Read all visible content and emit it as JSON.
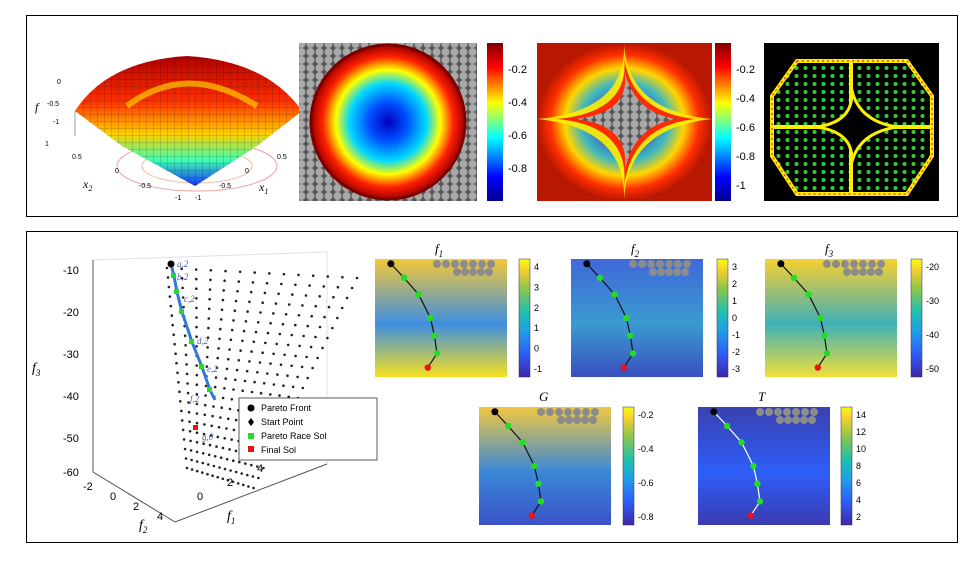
{
  "top": {
    "surface": {
      "zlabel": "f",
      "xlabel": "x",
      "xlabel_sub": "1",
      "ylabel": "x",
      "ylabel_sub": "2",
      "zticks": [
        "0",
        "-0.5",
        "-1"
      ],
      "xticks": [
        "-1",
        "-0.5",
        "0",
        "0.5"
      ],
      "yticks": [
        "1",
        "0.5",
        "0",
        "-0.5",
        "-1"
      ]
    },
    "colorbar1": {
      "ticks": [
        "-0.2",
        "-0.4",
        "-0.6",
        "-0.8"
      ]
    },
    "colorbar2": {
      "ticks": [
        "-0.2",
        "-0.4",
        "-0.6",
        "-0.8",
        "-1"
      ]
    }
  },
  "bottom": {
    "plot3d": {
      "zticks": [
        "-10",
        "-20",
        "-30",
        "-40",
        "-50",
        "-60"
      ],
      "xticks": [
        "-2",
        "0",
        "2",
        "4"
      ],
      "yticks": [
        "0",
        "2",
        "4"
      ],
      "xlabel": "f",
      "xlabel_sub": "2",
      "ylabel": "f",
      "ylabel_sub": "1",
      "zlabel": "f",
      "zlabel_sub": "3",
      "point_labels": [
        "a,2",
        "b,2",
        "c,2",
        "d,2",
        "e,2",
        "f,2",
        "g,0"
      ],
      "legend": [
        "Pareto Front",
        "Start Point",
        "Pareto Race Sol",
        "Final Sol"
      ]
    },
    "maps": [
      {
        "title": "f",
        "sub": "1",
        "ticks": [
          "4",
          "3",
          "2",
          "1",
          "0",
          "-1"
        ]
      },
      {
        "title": "f",
        "sub": "2",
        "ticks": [
          "3",
          "2",
          "1",
          "0",
          "-1",
          "-2",
          "-3"
        ]
      },
      {
        "title": "f",
        "sub": "3",
        "ticks": [
          "-20",
          "-30",
          "-40",
          "-50"
        ]
      },
      {
        "title": "G",
        "sub": "",
        "ticks": [
          "-0.2",
          "-0.4",
          "-0.6",
          "-0.8"
        ]
      },
      {
        "title": "T",
        "sub": "",
        "ticks": [
          "14",
          "12",
          "10",
          "8",
          "6",
          "4",
          "2"
        ]
      }
    ]
  },
  "colors": {
    "jet": [
      "#00008f",
      "#0000ff",
      "#00ffff",
      "#ffff00",
      "#ff0000",
      "#800000"
    ],
    "parula": [
      "#3e26a8",
      "#2e5ef8",
      "#1fa1e5",
      "#1ebfb0",
      "#8cc64b",
      "#f5cd2f",
      "#f9fb0e"
    ],
    "pareto_green": "#22dd22",
    "final_red": "#ee1111",
    "path_blue": "#3377dd"
  }
}
